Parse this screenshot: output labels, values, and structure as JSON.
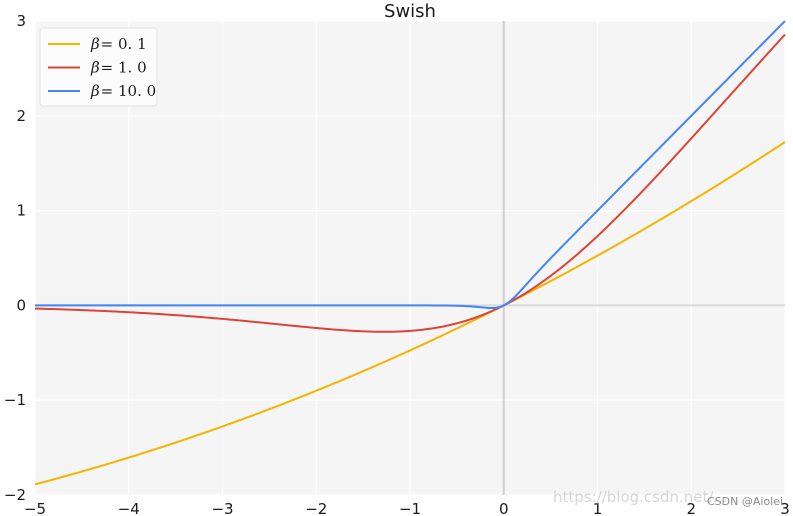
{
  "chart_data": {
    "type": "line",
    "title": "Swish",
    "xlabel": "",
    "ylabel": "",
    "xlim": [
      -5,
      3
    ],
    "ylim": [
      -2,
      3
    ],
    "xticks": [
      -5,
      -4,
      -3,
      -2,
      -1,
      0,
      1,
      2,
      3
    ],
    "yticks": [
      -2,
      -1,
      0,
      1,
      2,
      3
    ],
    "xtick_labels": [
      "−5",
      "−4",
      "−3",
      "−2",
      "−1",
      "0",
      "1",
      "2",
      "3"
    ],
    "ytick_labels": [
      "−2",
      "−1",
      "0",
      "1",
      "2",
      "3"
    ],
    "grid": true,
    "legend_position": "top-left",
    "series": [
      {
        "name": "β = 0.1",
        "beta": 0.1,
        "color": "#f5b400",
        "x": [
          -5,
          -4.5,
          -4,
          -3.5,
          -3,
          -2.5,
          -2,
          -1.5,
          -1,
          -0.5,
          0,
          0.5,
          1,
          1.5,
          2,
          2.5,
          3
        ],
        "y": [
          -1.89,
          -1.74,
          -1.6,
          -1.45,
          -1.29,
          -1.13,
          -0.96,
          -0.79,
          -0.62,
          -0.44,
          0,
          0.38,
          0.52,
          0.79,
          1.1,
          1.41,
          1.72
        ]
      },
      {
        "name": "β = 1.0",
        "beta": 1.0,
        "color": "#db4437",
        "x": [
          -5,
          -4.5,
          -4,
          -3.5,
          -3,
          -2.5,
          -2,
          -1.5,
          -1,
          -0.5,
          0,
          0.5,
          1,
          1.5,
          2,
          2.5,
          3
        ],
        "y": [
          -0.03,
          -0.05,
          -0.07,
          -0.1,
          -0.14,
          -0.19,
          -0.24,
          -0.27,
          -0.27,
          -0.19,
          0,
          0.31,
          0.73,
          1.23,
          1.76,
          2.31,
          2.86
        ]
      },
      {
        "name": "β = 10.0",
        "beta": 10.0,
        "color": "#4285f4",
        "x": [
          -5,
          -4.5,
          -4,
          -3.5,
          -3,
          -2.5,
          -2,
          -1.5,
          -1,
          -0.5,
          0,
          0.5,
          1,
          1.5,
          2,
          2.5,
          3
        ],
        "y": [
          0,
          0,
          0,
          0,
          0,
          0,
          0,
          0,
          0,
          -0.003,
          0,
          0.5,
          1.0,
          1.5,
          2.0,
          2.5,
          3.0
        ]
      }
    ]
  },
  "watermark": {
    "url": "https://blog.csdn.net/...",
    "label": "CSDN @Aiolei"
  },
  "legend": {
    "items": [
      {
        "symbol": "β",
        "eq": "= 0. 1"
      },
      {
        "symbol": "β",
        "eq": "= 1. 0"
      },
      {
        "symbol": "β",
        "eq": "= 10. 0"
      }
    ]
  }
}
